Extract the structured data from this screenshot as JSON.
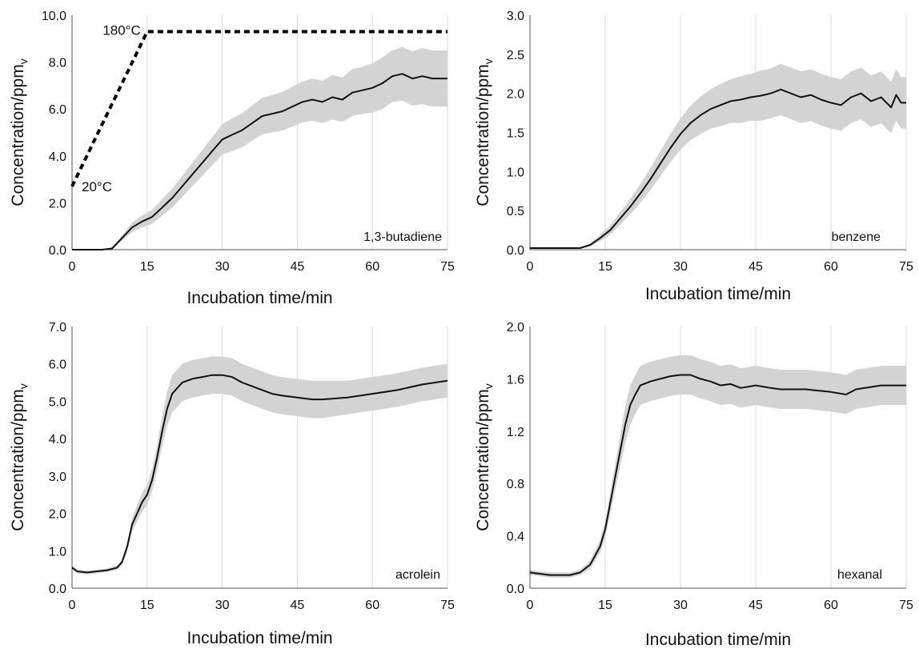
{
  "chart_data": [
    {
      "type": "line",
      "title": "",
      "label": "1,3-butadiene",
      "xlabel": "Incubation time/min",
      "ylabel_main": "Concentration/ppm",
      "ylabel_sub": "v",
      "xlim": [
        0,
        75
      ],
      "ylim": [
        0,
        10
      ],
      "xticks": [
        0,
        15,
        30,
        45,
        60,
        75
      ],
      "yticks": [
        0,
        2,
        4,
        6,
        8,
        10
      ],
      "yticklabels": [
        "0.0",
        "2.0",
        "4.0",
        "6.0",
        "8.0",
        "10.0"
      ],
      "grid": "vertical",
      "x": [
        0,
        6,
        8,
        10,
        12,
        14,
        16,
        18,
        20,
        22,
        24,
        26,
        28,
        30,
        32,
        34,
        36,
        38,
        40,
        42,
        44,
        46,
        48,
        50,
        52,
        54,
        56,
        58,
        60,
        62,
        64,
        66,
        68,
        70,
        72,
        75
      ],
      "values": [
        0,
        0,
        0.05,
        0.5,
        0.95,
        1.2,
        1.4,
        1.8,
        2.2,
        2.7,
        3.2,
        3.7,
        4.2,
        4.7,
        4.9,
        5.1,
        5.4,
        5.7,
        5.8,
        5.9,
        6.1,
        6.3,
        6.4,
        6.3,
        6.5,
        6.4,
        6.7,
        6.8,
        6.9,
        7.1,
        7.4,
        7.5,
        7.3,
        7.4,
        7.3,
        7.3
      ],
      "band": [
        0,
        0,
        0.05,
        0.12,
        0.2,
        0.25,
        0.3,
        0.35,
        0.4,
        0.45,
        0.5,
        0.55,
        0.6,
        0.65,
        0.7,
        0.72,
        0.75,
        0.78,
        0.8,
        0.82,
        0.85,
        0.87,
        0.9,
        0.9,
        0.95,
        0.95,
        1.0,
        1.0,
        1.05,
        1.1,
        1.1,
        1.15,
        1.15,
        1.2,
        1.2,
        1.2
      ],
      "temperature_profile": {
        "x": [
          0,
          15,
          75
        ],
        "y": [
          2.7,
          9.3,
          9.3
        ],
        "start_label": "20°C",
        "end_label": "180°C"
      }
    },
    {
      "type": "line",
      "title": "",
      "label": "benzene",
      "xlabel": "Incubation time/min",
      "ylabel_main": "Concentration/ppm",
      "ylabel_sub": "v",
      "xlim": [
        0,
        75
      ],
      "ylim": [
        0,
        3
      ],
      "xticks": [
        0,
        15,
        30,
        45,
        60,
        75
      ],
      "yticks": [
        0,
        0.5,
        1,
        1.5,
        2,
        2.5,
        3
      ],
      "yticklabels": [
        "0.0",
        "0.5",
        "1.0",
        "1.5",
        "2.0",
        "2.5",
        "3.0"
      ],
      "grid": "vertical",
      "x": [
        0,
        10,
        12,
        14,
        16,
        18,
        20,
        22,
        24,
        26,
        28,
        30,
        32,
        34,
        36,
        38,
        40,
        42,
        44,
        46,
        48,
        50,
        52,
        54,
        56,
        58,
        60,
        62,
        64,
        66,
        68,
        70,
        72,
        73,
        74,
        75
      ],
      "values": [
        0.02,
        0.02,
        0.06,
        0.15,
        0.25,
        0.4,
        0.55,
        0.72,
        0.9,
        1.1,
        1.3,
        1.48,
        1.62,
        1.72,
        1.8,
        1.85,
        1.9,
        1.92,
        1.95,
        1.97,
        2.0,
        2.05,
        2.0,
        1.95,
        1.98,
        1.92,
        1.88,
        1.85,
        1.95,
        2.0,
        1.9,
        1.95,
        1.82,
        1.98,
        1.88,
        1.88
      ],
      "band": [
        0,
        0.01,
        0.02,
        0.04,
        0.06,
        0.08,
        0.1,
        0.12,
        0.14,
        0.16,
        0.18,
        0.2,
        0.22,
        0.24,
        0.25,
        0.27,
        0.28,
        0.3,
        0.3,
        0.32,
        0.32,
        0.33,
        0.33,
        0.33,
        0.33,
        0.33,
        0.33,
        0.33,
        0.33,
        0.33,
        0.33,
        0.33,
        0.33,
        0.33,
        0.33,
        0.33
      ]
    },
    {
      "type": "line",
      "title": "",
      "label": "acrolein",
      "xlabel": "Incubation time/min",
      "ylabel_main": "Concentration/ppm",
      "ylabel_sub": "v",
      "xlim": [
        0,
        75
      ],
      "ylim": [
        0,
        7
      ],
      "xticks": [
        0,
        15,
        30,
        45,
        60,
        75
      ],
      "yticks": [
        0,
        1,
        2,
        3,
        4,
        5,
        6,
        7
      ],
      "yticklabels": [
        "0.0",
        "1.0",
        "2.0",
        "3.0",
        "4.0",
        "5.0",
        "6.0",
        "7.0"
      ],
      "grid": "vertical",
      "x": [
        0,
        1,
        3,
        5,
        7,
        9,
        10,
        11,
        12,
        13,
        14,
        15,
        16,
        17,
        18,
        19,
        20,
        22,
        24,
        26,
        28,
        30,
        32,
        34,
        36,
        38,
        40,
        42,
        45,
        48,
        50,
        55,
        60,
        65,
        70,
        75
      ],
      "values": [
        0.55,
        0.45,
        0.42,
        0.45,
        0.48,
        0.55,
        0.7,
        1.1,
        1.7,
        2.0,
        2.3,
        2.5,
        2.9,
        3.5,
        4.2,
        4.8,
        5.2,
        5.5,
        5.6,
        5.65,
        5.7,
        5.7,
        5.65,
        5.5,
        5.4,
        5.3,
        5.2,
        5.15,
        5.1,
        5.05,
        5.05,
        5.1,
        5.2,
        5.3,
        5.45,
        5.55
      ],
      "band": [
        0.05,
        0.05,
        0.05,
        0.05,
        0.05,
        0.06,
        0.08,
        0.12,
        0.18,
        0.22,
        0.25,
        0.28,
        0.3,
        0.35,
        0.4,
        0.45,
        0.5,
        0.5,
        0.5,
        0.5,
        0.5,
        0.5,
        0.5,
        0.5,
        0.5,
        0.5,
        0.5,
        0.5,
        0.5,
        0.5,
        0.5,
        0.45,
        0.45,
        0.45,
        0.45,
        0.45
      ]
    },
    {
      "type": "line",
      "title": "",
      "label": "hexanal",
      "xlabel": "Incubation time/min",
      "ylabel_main": "Concentration/ppm",
      "ylabel_sub": "v",
      "xlim": [
        0,
        75
      ],
      "ylim": [
        0,
        2
      ],
      "xticks": [
        0,
        15,
        30,
        45,
        60,
        75
      ],
      "yticks": [
        0,
        0.4,
        0.8,
        1.2,
        1.6,
        2
      ],
      "yticklabels": [
        "0.0",
        "0.4",
        "0.8",
        "1.2",
        "1.6",
        "2.0"
      ],
      "grid": "vertical",
      "x": [
        0,
        2,
        4,
        6,
        8,
        10,
        12,
        13,
        14,
        15,
        16,
        17,
        18,
        19,
        20,
        21,
        22,
        24,
        26,
        28,
        30,
        32,
        34,
        36,
        38,
        40,
        42,
        45,
        48,
        50,
        55,
        60,
        63,
        65,
        70,
        75
      ],
      "values": [
        0.12,
        0.11,
        0.1,
        0.1,
        0.1,
        0.12,
        0.18,
        0.25,
        0.32,
        0.45,
        0.65,
        0.85,
        1.05,
        1.25,
        1.4,
        1.48,
        1.55,
        1.58,
        1.6,
        1.62,
        1.63,
        1.63,
        1.6,
        1.58,
        1.55,
        1.56,
        1.53,
        1.55,
        1.53,
        1.52,
        1.52,
        1.5,
        1.48,
        1.52,
        1.55,
        1.55
      ],
      "band": [
        0.02,
        0.02,
        0.02,
        0.02,
        0.02,
        0.02,
        0.03,
        0.04,
        0.05,
        0.06,
        0.08,
        0.1,
        0.12,
        0.14,
        0.15,
        0.15,
        0.15,
        0.15,
        0.15,
        0.15,
        0.15,
        0.15,
        0.15,
        0.15,
        0.15,
        0.15,
        0.15,
        0.15,
        0.15,
        0.15,
        0.15,
        0.15,
        0.15,
        0.15,
        0.15,
        0.15
      ]
    }
  ]
}
